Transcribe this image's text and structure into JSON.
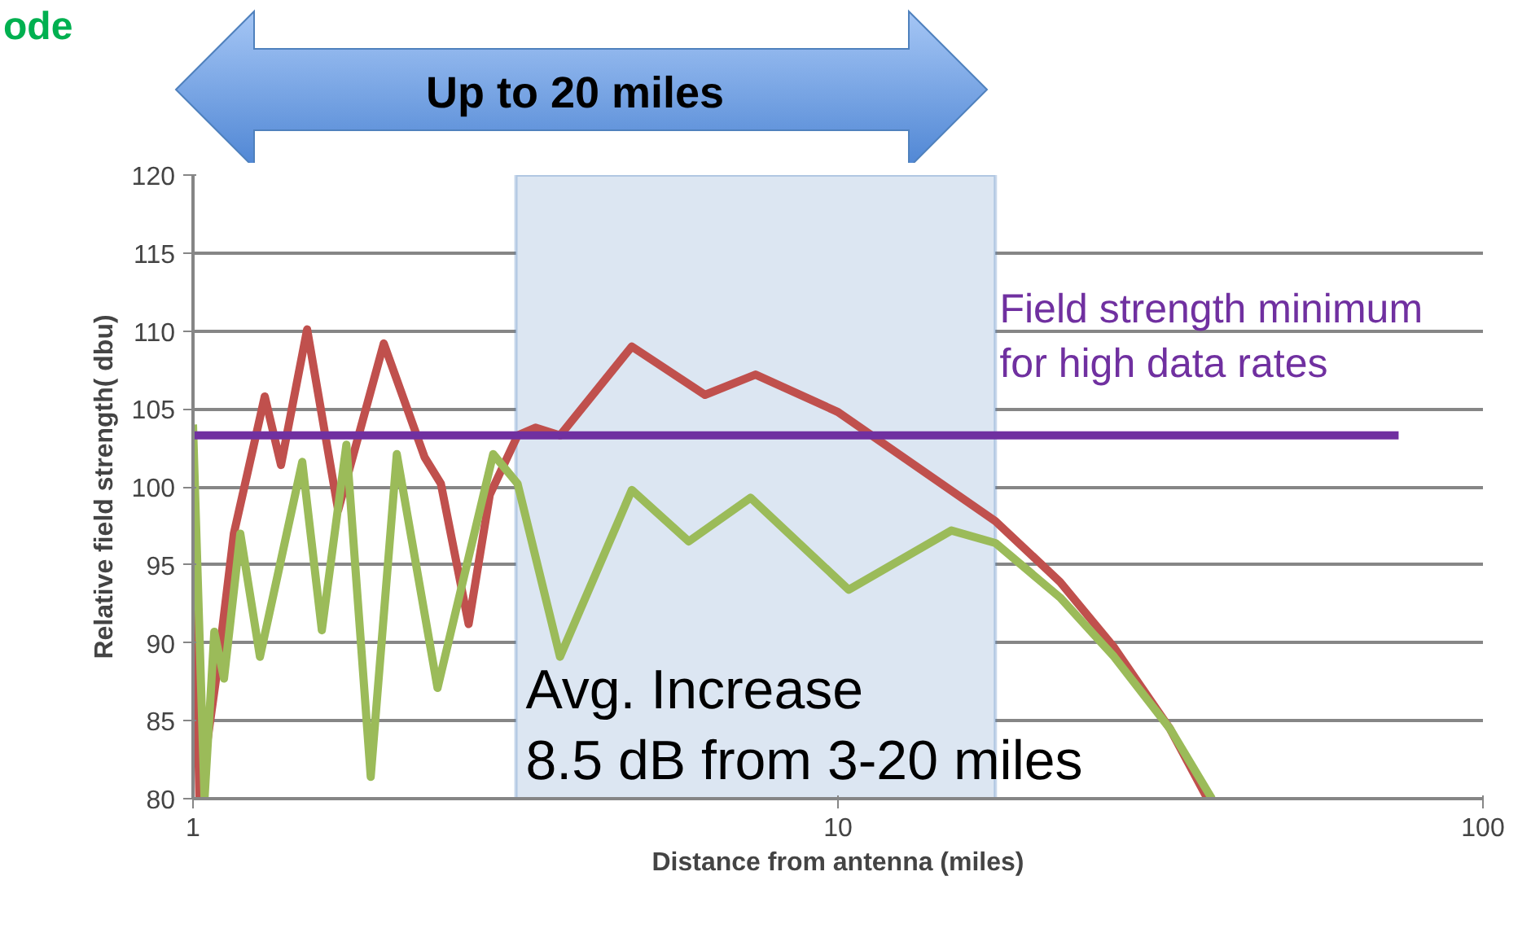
{
  "chart_data": {
    "type": "line",
    "title": "ode",
    "xlabel": "Distance from antenna (miles)",
    "ylabel": "Relative field strength( dbu)",
    "log": "x",
    "xlim": [
      1,
      100
    ],
    "xticks": [
      1,
      10,
      100
    ],
    "ylim": [
      80,
      120
    ],
    "yticks": [
      80,
      85,
      90,
      95,
      100,
      105,
      110,
      115,
      120
    ],
    "grid": "y",
    "marker": "none",
    "line_style": "solid",
    "series": [
      {
        "color": "#c0504d",
        "x": [
          1.0,
          1.023,
          1.091,
          1.157,
          1.292,
          1.369,
          1.503,
          1.679,
          1.976,
          2.286,
          2.423,
          2.675,
          2.885,
          3.186,
          3.396,
          3.707,
          4.79,
          6.22,
          7.45,
          10,
          17.54,
          22.1,
          26.8,
          32.7,
          37.4
        ],
        "values": [
          100,
          80,
          88.3,
          97.0,
          105.8,
          101.4,
          110.1,
          98.5,
          109.2,
          101.9,
          100.2,
          91.2,
          99.5,
          103.3,
          103.8,
          103.3,
          109.0,
          105.9,
          107.2,
          104.8,
          97.8,
          93.9,
          89.7,
          84.5,
          80
        ]
      },
      {
        "color": "#9bbb59",
        "x": [
          1.0,
          1.042,
          1.079,
          1.117,
          1.184,
          1.27,
          1.477,
          1.584,
          1.729,
          1.886,
          2.07,
          2.394,
          2.92,
          3.186,
          3.707,
          4.79,
          5.87,
          7.32,
          10.39,
          14.99,
          17.54,
          22.1,
          26.8,
          32.7,
          38.0
        ],
        "values": [
          104,
          80,
          90.7,
          87.7,
          97.0,
          89.1,
          101.6,
          90.8,
          102.7,
          81.4,
          102.1,
          87.1,
          102.1,
          100.2,
          89.1,
          99.8,
          96.5,
          99.3,
          93.4,
          97.2,
          96.4,
          92.9,
          89.1,
          84.5,
          80
        ]
      },
      {
        "name": "Field strength minimum\nfor high data rates",
        "color": "#7030a0",
        "x": [
          1,
          74
        ],
        "values": [
          103.3,
          103.3
        ]
      }
    ],
    "bands": [
      {
        "axis": "x",
        "from": 3.167,
        "to": 17.54,
        "label": "Avg.  Increase\n8.5 dB from 3-20 miles",
        "color": "#dce6f2"
      }
    ],
    "annotations": [
      "Up to 20 miles"
    ]
  }
}
